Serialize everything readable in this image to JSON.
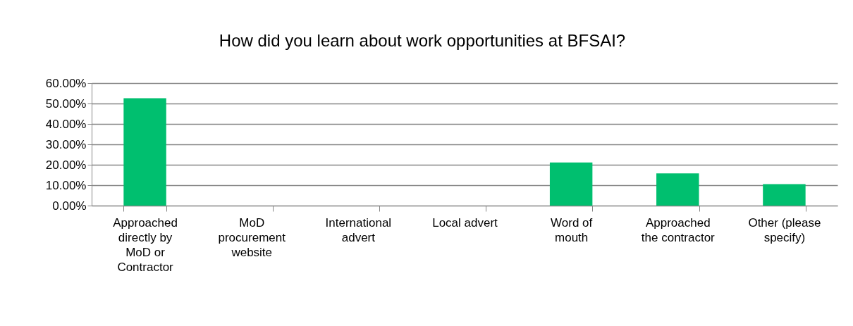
{
  "chart_data": {
    "type": "bar",
    "title": "How did you learn about work opportunities at BFSAI?",
    "categories": [
      "Approached directly by MoD or Contractor",
      "MoD procurement website",
      "International advert",
      "Local advert",
      "Word of mouth",
      "Approached the contractor",
      "Other (please specify)"
    ],
    "values": [
      52.6,
      0,
      0,
      0,
      21.1,
      15.8,
      10.5
    ],
    "color": "#00bf6f",
    "ylim": [
      0,
      60
    ],
    "yticks": [
      {
        "value": 0,
        "label": "0.00%"
      },
      {
        "value": 10,
        "label": "10.00%"
      },
      {
        "value": 20,
        "label": "20.00%"
      },
      {
        "value": 30,
        "label": "30.00%"
      },
      {
        "value": 40,
        "label": "40.00%"
      },
      {
        "value": 50,
        "label": "50.00%"
      },
      {
        "value": 60,
        "label": "60.00%"
      }
    ],
    "grid": "y"
  }
}
